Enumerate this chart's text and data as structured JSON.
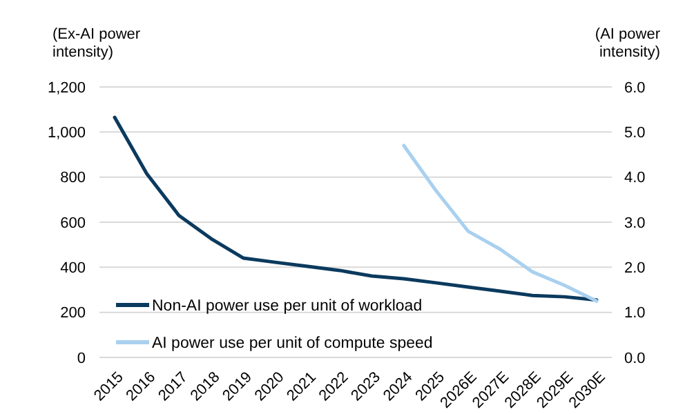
{
  "chart_data": {
    "type": "line",
    "xlabel": null,
    "ylabel": "(Ex-AI power intensity)",
    "y2label": "(AI power intensity)",
    "categories": [
      "2015",
      "2016",
      "2017",
      "2018",
      "2019",
      "2020",
      "2021",
      "2022",
      "2023",
      "2024",
      "2025",
      "2026E",
      "2027E",
      "2028E",
      "2029E",
      "2030E"
    ],
    "series": [
      {
        "name": "Non-AI power use per unit of workload",
        "color": "#0b3a5e",
        "values": [
          1065,
          815,
          630,
          527,
          441,
          422,
          404,
          386,
          361,
          349,
          331,
          312,
          294,
          275,
          269,
          255
        ]
      },
      {
        "name": "AI power use per unit of compute speed",
        "color": "#a9d0ef",
        "axis": "y2",
        "values": [
          null,
          null,
          null,
          null,
          null,
          null,
          null,
          null,
          null,
          4.7,
          3.7,
          2.8,
          2.4,
          1.9,
          1.6,
          1.25
        ]
      }
    ],
    "ylim": [
      0,
      1200
    ],
    "yticks": [
      0,
      200,
      400,
      600,
      800,
      {
        "value": 1000,
        "label": "1,000"
      },
      {
        "value": 1200,
        "label": "1,200"
      }
    ],
    "y2lim": [
      0,
      6
    ],
    "y2ticks": [
      {
        "value": 0,
        "label": "0.0"
      },
      {
        "value": 1,
        "label": "1.0"
      },
      {
        "value": 2,
        "label": "2.0"
      },
      {
        "value": 3,
        "label": "3.0"
      },
      {
        "value": 4,
        "label": "4.0"
      },
      {
        "value": 5,
        "label": "5.0"
      },
      {
        "value": 6,
        "label": "6.0"
      }
    ],
    "grid": "y",
    "legend": "bottom left",
    "marker": "none",
    "line_style": "solid"
  }
}
